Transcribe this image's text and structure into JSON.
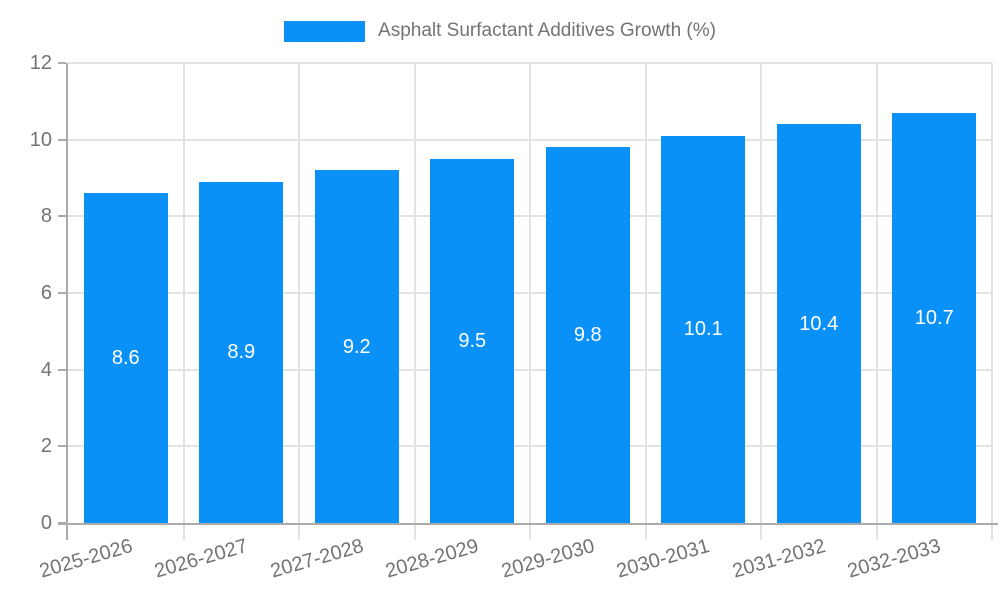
{
  "legend": {
    "label": "Asphalt Surfactant Additives Growth (%)"
  },
  "colors": {
    "bar": "#0991f8",
    "grid": "#e3e3e3",
    "axis": "#ababab",
    "tick_text": "#737373",
    "value_text": "#ffffff"
  },
  "chart_data": {
    "type": "bar",
    "title": "Asphalt Surfactant Additives Growth (%)",
    "categories": [
      "2025-2026",
      "2026-2027",
      "2027-2028",
      "2028-2029",
      "2029-2030",
      "2030-2031",
      "2031-2032",
      "2032-2033"
    ],
    "values": [
      8.6,
      8.9,
      9.2,
      9.5,
      9.8,
      10.1,
      10.4,
      10.7
    ],
    "value_labels": [
      "8.6",
      "8.9",
      "9.2",
      "9.5",
      "9.8",
      "10.1",
      "10.4",
      "10.7"
    ],
    "xlabel": "",
    "ylabel": "",
    "ylim": [
      0,
      12
    ],
    "yticks": [
      0,
      2,
      4,
      6,
      8,
      10,
      12
    ],
    "ytick_labels": [
      "0",
      "2",
      "4",
      "6",
      "8",
      "10",
      "12"
    ],
    "grid": true,
    "legend_position": "top-center",
    "value_label_position": "inside-center"
  }
}
